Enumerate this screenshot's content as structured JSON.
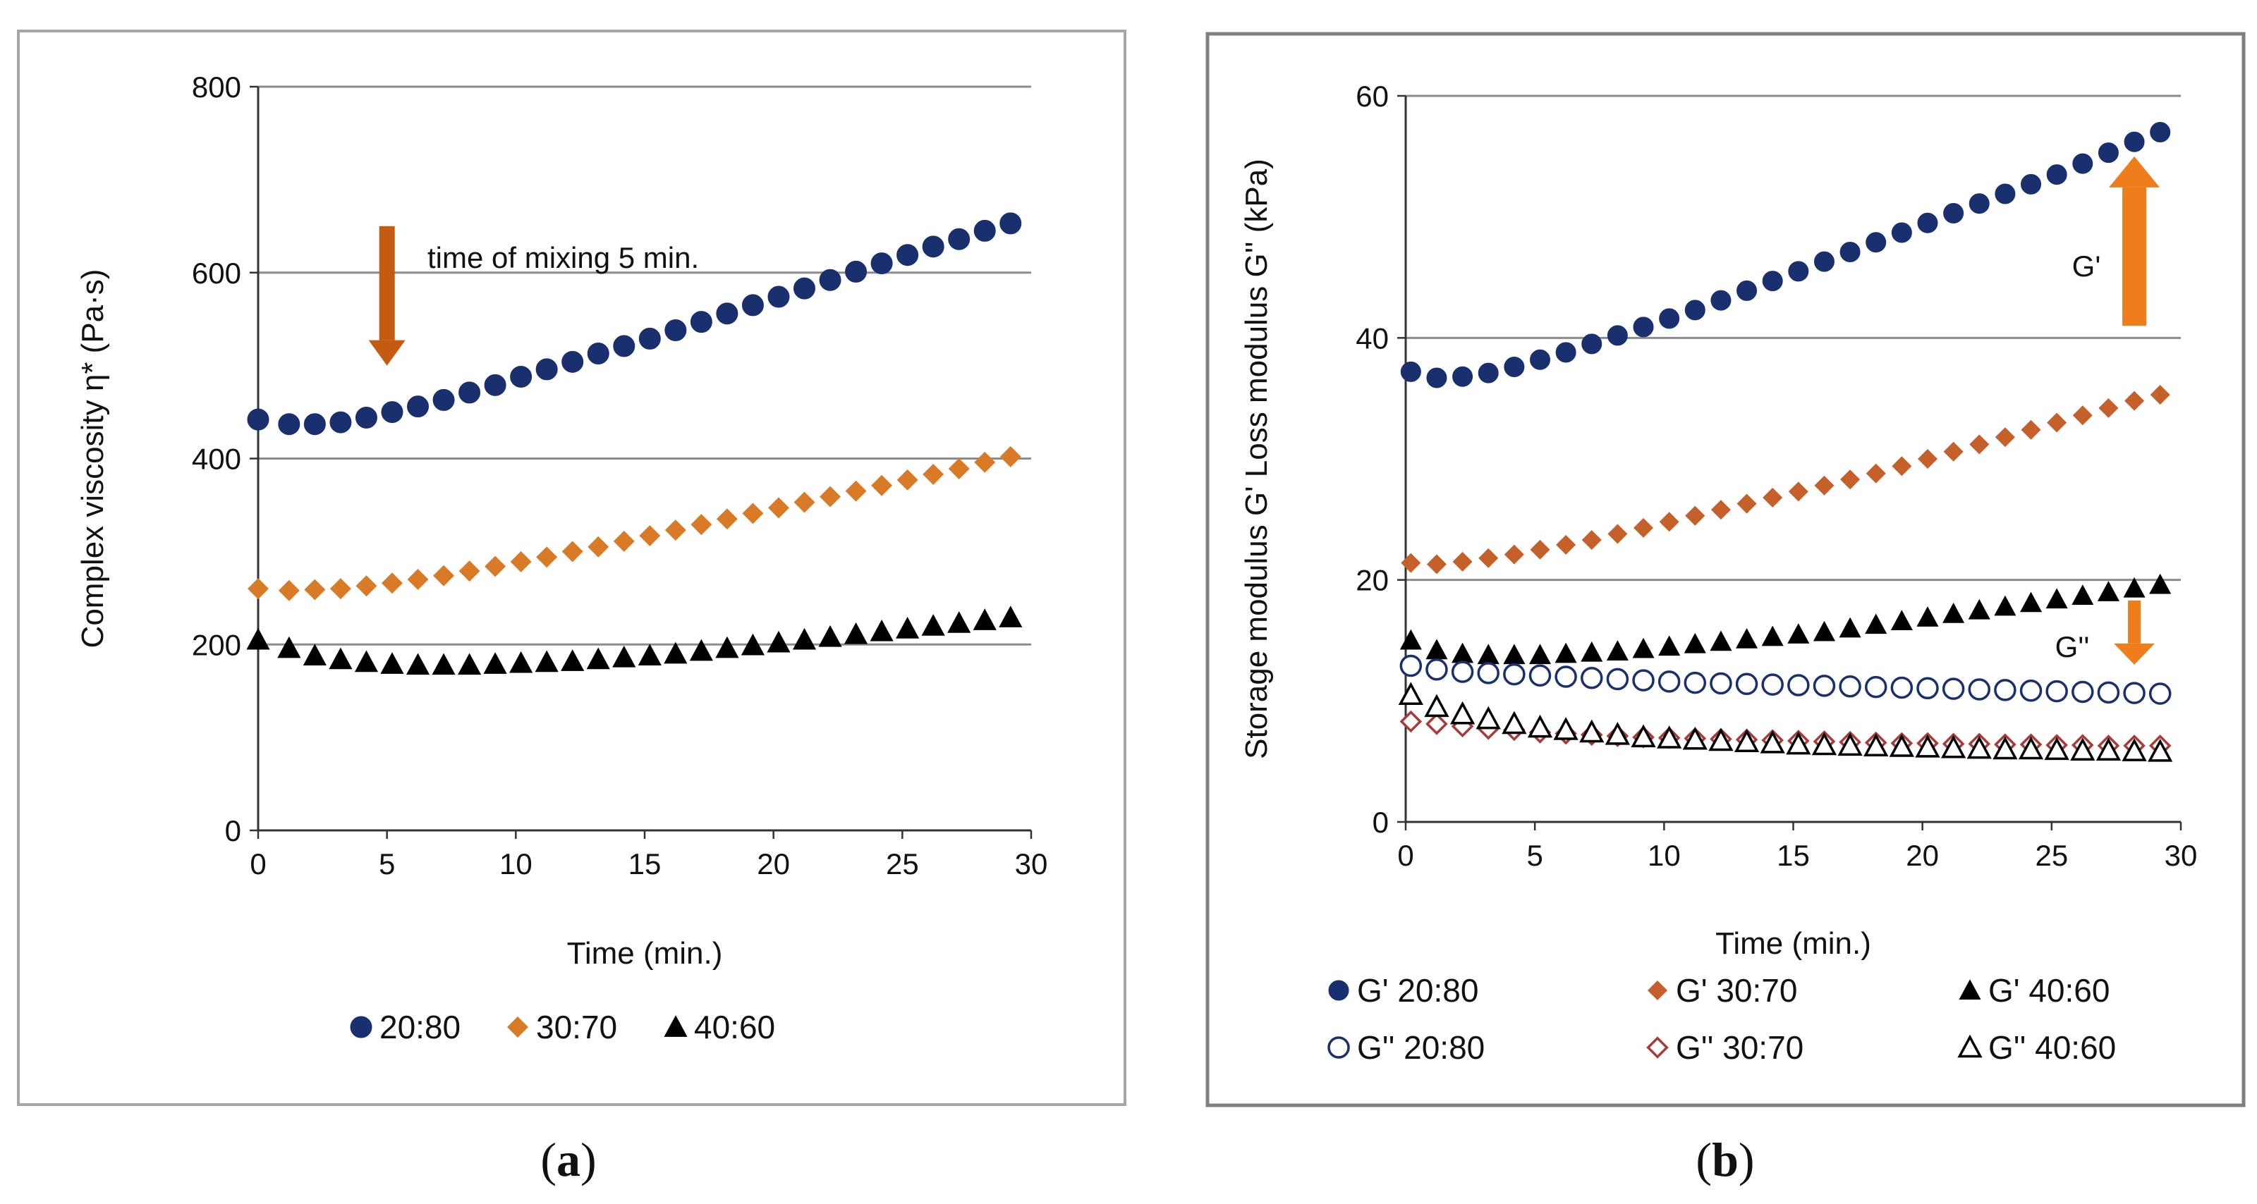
{
  "chart_data": [
    {
      "type": "scatter",
      "panel_label": "a",
      "xlabel": "Time (min.)",
      "ylabel": "Complex viscosity η* (Pa·s)",
      "xlim": [
        0,
        30
      ],
      "ylim": [
        0,
        800
      ],
      "xticks": [
        "0",
        "5",
        "10",
        "15",
        "20",
        "25",
        "30"
      ],
      "yticks": [
        "0",
        "200",
        "400",
        "600",
        "800"
      ],
      "grid": "horizontal",
      "legend_position": "bottom",
      "annotation": "time of mixing 5 min.",
      "annotation_arrow": {
        "x": 5,
        "y_from": 650,
        "y_to": 500,
        "color": "#c55a11"
      },
      "x": [
        0,
        1.2,
        2.2,
        3.2,
        4.2,
        5.2,
        6.2,
        7.2,
        8.2,
        9.2,
        10.2,
        11.2,
        12.2,
        13.2,
        14.2,
        15.2,
        16.2,
        17.2,
        18.2,
        19.2,
        20.2,
        21.2,
        22.2,
        23.2,
        24.2,
        25.2,
        26.2,
        27.2,
        28.2,
        29.2
      ],
      "series": [
        {
          "name": "20:80",
          "marker": "circle-filled",
          "color": "#1a2f6e",
          "values": [
            442,
            437,
            437,
            439,
            444,
            450,
            456,
            463,
            471,
            479,
            488,
            496,
            504,
            513,
            521,
            529,
            538,
            547,
            556,
            565,
            574,
            583,
            592,
            601,
            610,
            619,
            628,
            636,
            645,
            653
          ]
        },
        {
          "name": "30:70",
          "marker": "diamond-filled",
          "color": "#d97a27",
          "values": [
            260,
            258,
            259,
            260,
            263,
            266,
            270,
            274,
            279,
            284,
            289,
            294,
            300,
            305,
            311,
            317,
            323,
            329,
            335,
            341,
            347,
            353,
            359,
            365,
            371,
            377,
            383,
            389,
            396,
            402
          ]
        },
        {
          "name": "40:60",
          "marker": "triangle-filled",
          "color": "#000000",
          "values": [
            205,
            196,
            188,
            184,
            181,
            179,
            178,
            178,
            178,
            179,
            180,
            181,
            182,
            184,
            186,
            188,
            190,
            193,
            196,
            199,
            202,
            205,
            208,
            211,
            214,
            217,
            220,
            223,
            226,
            229
          ]
        }
      ]
    },
    {
      "type": "scatter",
      "panel_label": "b",
      "xlabel": "Time (min.)",
      "ylabel": "Storage modulus G' Loss modulus G'' (kPa)",
      "xlim": [
        0,
        30
      ],
      "ylim": [
        0,
        60
      ],
      "xticks": [
        "0",
        "5",
        "10",
        "15",
        "20",
        "25",
        "30"
      ],
      "yticks": [
        "0",
        "20",
        "40",
        "60"
      ],
      "grid": "horizontal",
      "legend_position": "bottom",
      "annotations": [
        {
          "text": "G'",
          "arrow": {
            "x": 28.2,
            "y_from": 41,
            "y_to": 55,
            "color": "#f07d1b"
          }
        },
        {
          "text": "G''",
          "arrow": {
            "x": 28.2,
            "y_from": 18.3,
            "y_to": 13,
            "color": "#f07d1b"
          }
        }
      ],
      "x": [
        0.2,
        1.2,
        2.2,
        3.2,
        4.2,
        5.2,
        6.2,
        7.2,
        8.2,
        9.2,
        10.2,
        11.2,
        12.2,
        13.2,
        14.2,
        15.2,
        16.2,
        17.2,
        18.2,
        19.2,
        20.2,
        21.2,
        22.2,
        23.2,
        24.2,
        25.2,
        26.2,
        27.2,
        28.2,
        29.2
      ],
      "series": [
        {
          "name": "G' 20:80",
          "marker": "circle-filled",
          "color": "#1a2f6e",
          "values": [
            37.2,
            36.7,
            36.8,
            37.1,
            37.6,
            38.2,
            38.8,
            39.5,
            40.2,
            40.9,
            41.6,
            42.3,
            43.1,
            43.9,
            44.7,
            45.5,
            46.3,
            47.1,
            47.9,
            48.7,
            49.5,
            50.3,
            51.1,
            51.9,
            52.7,
            53.5,
            54.4,
            55.3,
            56.2,
            57.0
          ]
        },
        {
          "name": "G' 30:70",
          "marker": "diamond-filled",
          "color": "#c5602b",
          "values": [
            21.4,
            21.3,
            21.5,
            21.8,
            22.1,
            22.5,
            22.9,
            23.3,
            23.8,
            24.3,
            24.8,
            25.3,
            25.8,
            26.3,
            26.8,
            27.3,
            27.8,
            28.3,
            28.8,
            29.4,
            30.0,
            30.6,
            31.2,
            31.8,
            32.4,
            33.0,
            33.6,
            34.2,
            34.8,
            35.3
          ]
        },
        {
          "name": "G' 40:60",
          "marker": "triangle-filled",
          "color": "#000000",
          "values": [
            15.0,
            14.2,
            13.9,
            13.8,
            13.8,
            13.8,
            13.9,
            14.0,
            14.1,
            14.3,
            14.5,
            14.7,
            14.9,
            15.1,
            15.3,
            15.5,
            15.7,
            16.0,
            16.3,
            16.6,
            16.9,
            17.2,
            17.5,
            17.8,
            18.1,
            18.4,
            18.7,
            19.0,
            19.3,
            19.6
          ]
        },
        {
          "name": "G'' 20:80",
          "marker": "circle-open",
          "color": "#1a2f6e",
          "values": [
            12.9,
            12.6,
            12.4,
            12.3,
            12.2,
            12.1,
            12.0,
            11.9,
            11.8,
            11.7,
            11.6,
            11.5,
            11.45,
            11.4,
            11.35,
            11.3,
            11.25,
            11.2,
            11.15,
            11.1,
            11.05,
            11.0,
            10.95,
            10.9,
            10.85,
            10.8,
            10.75,
            10.7,
            10.65,
            10.6
          ]
        },
        {
          "name": "G'' 30:70",
          "marker": "diamond-open",
          "color": "#a83a3a",
          "values": [
            8.3,
            8.1,
            7.9,
            7.7,
            7.6,
            7.4,
            7.3,
            7.2,
            7.1,
            7.0,
            6.95,
            6.9,
            6.85,
            6.8,
            6.75,
            6.7,
            6.65,
            6.6,
            6.55,
            6.5,
            6.5,
            6.45,
            6.45,
            6.4,
            6.4,
            6.35,
            6.35,
            6.3,
            6.3,
            6.3
          ]
        },
        {
          "name": "G'' 40:60",
          "marker": "triangle-open",
          "color": "#000000",
          "values": [
            10.5,
            9.5,
            8.9,
            8.5,
            8.1,
            7.8,
            7.6,
            7.4,
            7.2,
            7.0,
            6.9,
            6.8,
            6.7,
            6.6,
            6.5,
            6.4,
            6.35,
            6.3,
            6.25,
            6.2,
            6.15,
            6.1,
            6.05,
            6.0,
            6.0,
            5.95,
            5.9,
            5.9,
            5.85,
            5.8
          ]
        }
      ]
    }
  ]
}
